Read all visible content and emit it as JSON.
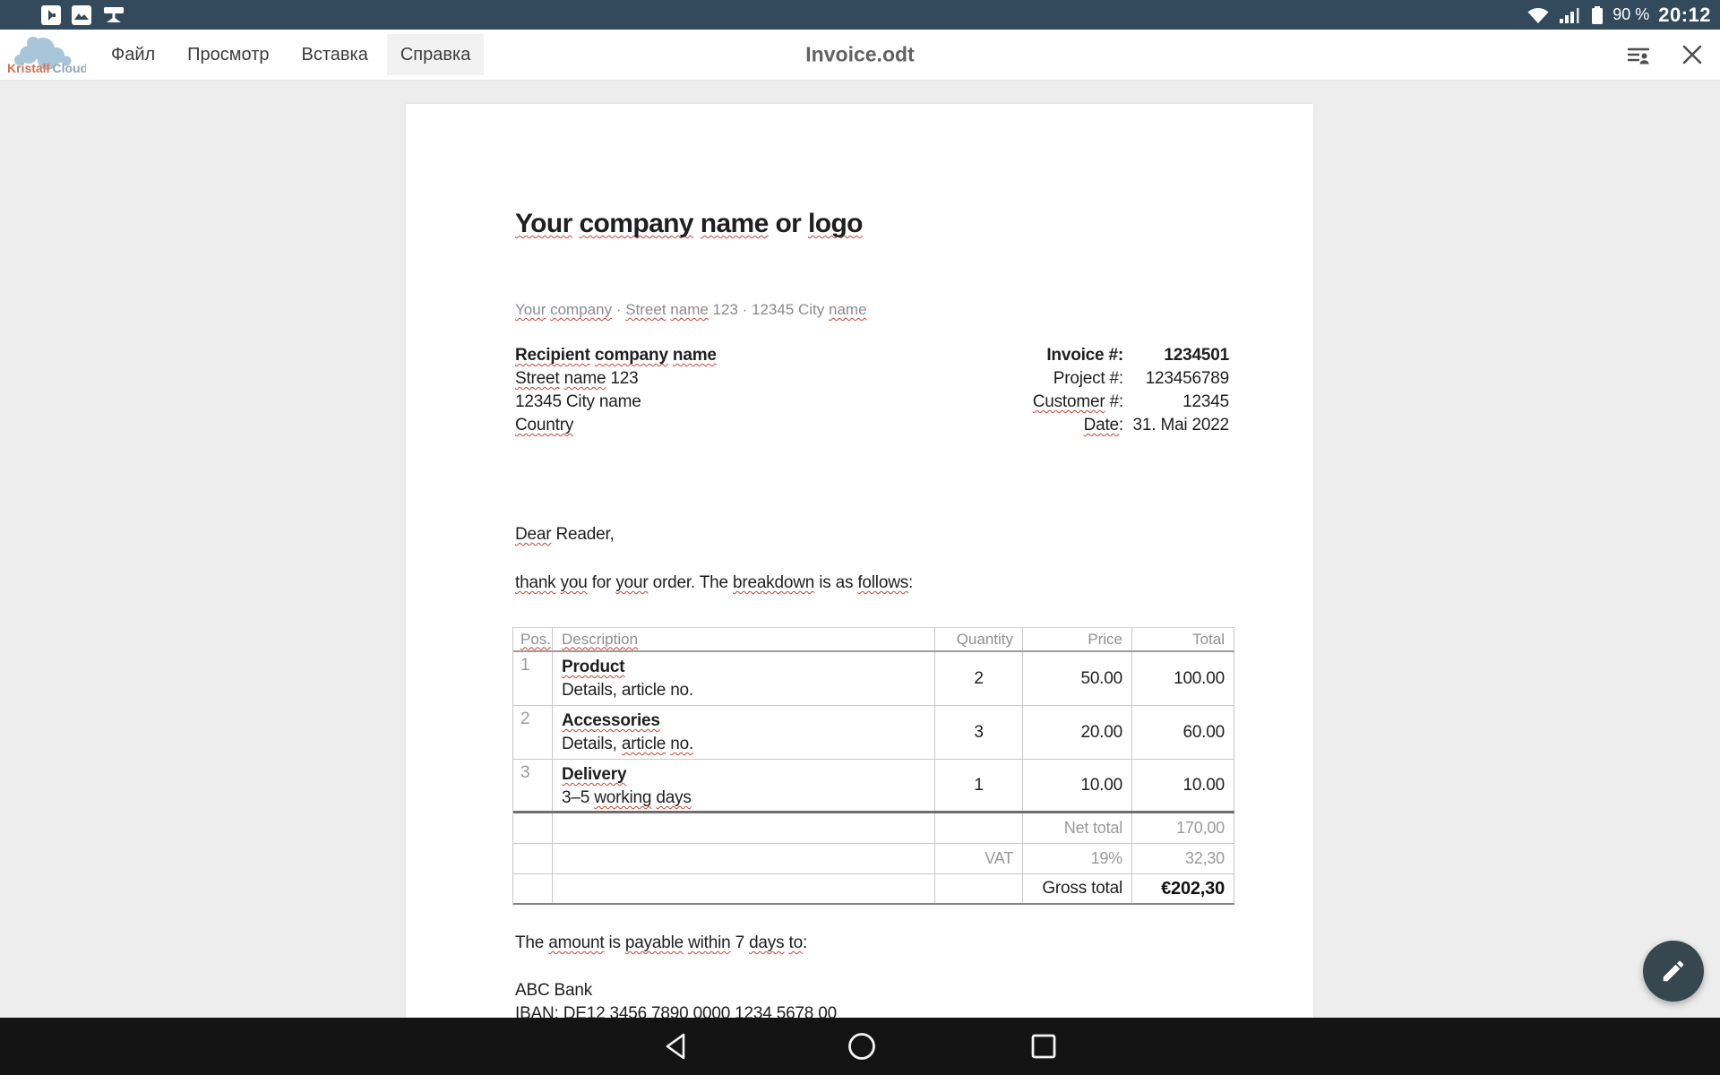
{
  "colors": {
    "status_bar_bg": "#324a5b",
    "nav_bar_bg": "#141414",
    "fab_bg": "#36474f",
    "active_menu_bg": "#f2f2f2",
    "squiggle_red": "#cc4437",
    "logo_accent": "#d4704f"
  },
  "status_bar": {
    "time": "20:12",
    "battery_percent": "90 %",
    "left_icons": [
      "forward-notification-icon",
      "screenshot-image-icon",
      "cast-network-icon"
    ],
    "right_icons": [
      "wifi-icon",
      "cell-signal-icon",
      "battery-icon"
    ]
  },
  "toolbar": {
    "logo_word1": "Kristall",
    "logo_word2": "Cloud",
    "menu": [
      {
        "label": "Файл",
        "active": false
      },
      {
        "label": "Просмотр",
        "active": false
      },
      {
        "label": "Вставка",
        "active": false
      },
      {
        "label": "Справка",
        "active": true
      }
    ],
    "title": "Invoice.odt",
    "right_icons": [
      "outline-people-icon",
      "close-icon"
    ]
  },
  "document": {
    "heading_runs": [
      {
        "t": "Your",
        "sq": true
      },
      {
        "t": " "
      },
      {
        "t": "company",
        "sq": true
      },
      {
        "t": " "
      },
      {
        "t": "name",
        "sq": true
      },
      {
        "t": " or "
      },
      {
        "t": "logo",
        "sq": true
      }
    ],
    "sender_runs": [
      {
        "t": "Your",
        "sq": true
      },
      {
        "t": " "
      },
      {
        "t": "company",
        "sq": true
      },
      {
        "t": "  ·  "
      },
      {
        "t": "Street",
        "sq": true
      },
      {
        "t": " "
      },
      {
        "t": "name",
        "sq": true
      },
      {
        "t": " 123  ·  12345 City "
      },
      {
        "t": "name",
        "sq": true
      }
    ],
    "recipient": {
      "line1": [
        {
          "t": "Recipient",
          "sq": true
        },
        {
          "t": " "
        },
        {
          "t": "company",
          "sq": true
        },
        {
          "t": " "
        },
        {
          "t": "name",
          "sq": true
        }
      ],
      "line2": [
        {
          "t": "Street",
          "sq": true
        },
        {
          "t": " "
        },
        {
          "t": "name",
          "sq": true
        },
        {
          "t": " 123"
        }
      ],
      "line3": [
        {
          "t": "12345 City name"
        }
      ],
      "line4": [
        {
          "t": "Country",
          "sq": true
        }
      ]
    },
    "meta": [
      {
        "label": [
          {
            "t": "Invoice #:"
          }
        ],
        "value": "1234501",
        "bold": true
      },
      {
        "label": [
          {
            "t": "Project #:"
          }
        ],
        "value": "123456789",
        "bold": false
      },
      {
        "label": [
          {
            "t": "Customer",
            "sq": true
          },
          {
            "t": " #:"
          }
        ],
        "value": "12345",
        "bold": false
      },
      {
        "label": [
          {
            "t": "Date",
            "sq": true
          },
          {
            "t": ":"
          }
        ],
        "value": "31. Mai 2022",
        "bold": false
      }
    ],
    "salutation_runs": [
      {
        "t": "Dear",
        "sq": true
      },
      {
        "t": " Reader,"
      }
    ],
    "intro_runs": [
      {
        "t": "thank",
        "sq": true
      },
      {
        "t": " "
      },
      {
        "t": "you",
        "sq": true
      },
      {
        "t": " for "
      },
      {
        "t": "your",
        "sq": true
      },
      {
        "t": " order. The "
      },
      {
        "t": "breakdown",
        "sq": true
      },
      {
        "t": " is as "
      },
      {
        "t": "follows",
        "sq": true
      },
      {
        "t": ":"
      }
    ],
    "table": {
      "headers": {
        "pos": [
          {
            "t": "Pos.",
            "sq": true
          }
        ],
        "desc": [
          {
            "t": "Description",
            "sq": true
          }
        ],
        "qty": [
          {
            "t": "Quantity"
          }
        ],
        "price": [
          {
            "t": "Price"
          }
        ],
        "total": [
          {
            "t": "Total"
          }
        ]
      },
      "rows": [
        {
          "pos": "1",
          "title": [
            {
              "t": "Product",
              "sq": true
            }
          ],
          "sub": [
            {
              "t": "Details, article no."
            }
          ],
          "qty": "2",
          "price": "50.00",
          "total": "100.00"
        },
        {
          "pos": "2",
          "title": [
            {
              "t": "Accessories",
              "sq": true
            }
          ],
          "sub": [
            {
              "t": "Details, "
            },
            {
              "t": "article",
              "sq": true
            },
            {
              "t": " "
            },
            {
              "t": "no.",
              "sq": true
            }
          ],
          "qty": "3",
          "price": "20.00",
          "total": "60.00"
        },
        {
          "pos": "3",
          "title": [
            {
              "t": "Delivery",
              "sq": true
            }
          ],
          "sub": [
            {
              "t": "3–5 "
            },
            {
              "t": "working",
              "sq": true
            },
            {
              "t": " "
            },
            {
              "t": "days",
              "sq": true
            }
          ],
          "qty": "1",
          "price": "10.00",
          "total": "10.00"
        }
      ],
      "summary": [
        {
          "qty_label": "",
          "price_label": "Net total",
          "total": "170,00"
        },
        {
          "qty_label": "VAT",
          "price_label": "19%",
          "total": "32,30"
        },
        {
          "qty_label": "",
          "price_label": "Gross total",
          "total": "€202,30"
        }
      ]
    },
    "payment_runs": [
      {
        "t": "The "
      },
      {
        "t": "amount",
        "sq": true
      },
      {
        "t": " is "
      },
      {
        "t": "payable",
        "sq": true
      },
      {
        "t": " "
      },
      {
        "t": "within",
        "sq": true
      },
      {
        "t": " 7 "
      },
      {
        "t": "days",
        "sq": true
      },
      {
        "t": " "
      },
      {
        "t": "to",
        "sq": true
      },
      {
        "t": ":"
      }
    ],
    "bank_line1": "ABC Bank",
    "bank_line2": "IBAN: DE12 3456 7890 0000 1234 5678 00"
  },
  "fab": {
    "icon": "pencil-icon"
  },
  "nav_bar": {
    "icons": [
      "back-icon",
      "home-icon",
      "recents-icon"
    ]
  }
}
